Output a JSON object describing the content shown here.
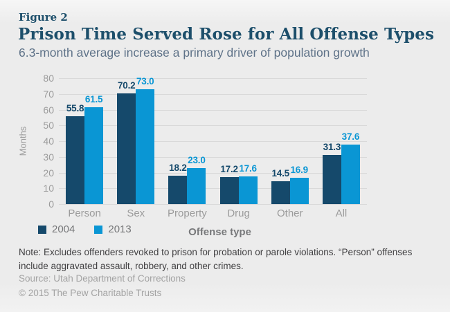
{
  "figure_label": "Figure 2",
  "title": "Prison Time Served Rose for All Offense Types",
  "subtitle": "6.3-month average increase a primary driver of population growth",
  "colors": {
    "series_2004": "#15496b",
    "series_2013": "#0a96d4",
    "background": "#ececec",
    "grid": "#d9d9d9",
    "axis_text": "#9b9b9b",
    "label_text": "#77787a",
    "title_text": "#1d4f6b",
    "subtitle_text": "#5e7288",
    "note_text": "#414042",
    "muted_text": "#a3a3a3"
  },
  "chart_data": {
    "type": "bar",
    "categories": [
      "Person",
      "Sex",
      "Property",
      "Drug",
      "Other",
      "All"
    ],
    "series": [
      {
        "name": "2004",
        "color_key": "series_2004",
        "values": [
          55.8,
          70.2,
          18.2,
          17.2,
          14.5,
          31.3
        ]
      },
      {
        "name": "2013",
        "color_key": "series_2013",
        "values": [
          61.5,
          73.0,
          23.0,
          17.6,
          16.9,
          37.6
        ]
      }
    ],
    "ylabel": "Months",
    "xlabel": "Offense type",
    "ylim": [
      0,
      80
    ],
    "ytick_step": 10,
    "grid": true,
    "legend_position": "bottom-left",
    "value_labels": true,
    "value_label_decimals": 1
  },
  "footer": {
    "note": "Note: Excludes offenders revoked to prison for probation or parole violations. “Person” offenses include aggravated assault, robbery, and other crimes.",
    "source": "Source: Utah Department of Corrections",
    "copyright": "© 2015 The Pew Charitable Trusts"
  }
}
